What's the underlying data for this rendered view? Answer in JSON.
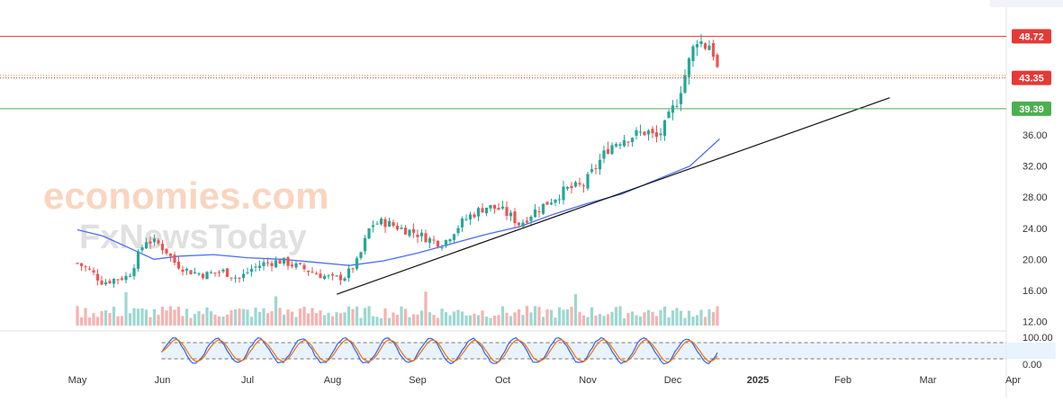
{
  "watermark": {
    "line1": "economies.com",
    "line2": "FxNewsToday"
  },
  "chart_data": {
    "type": "candlestick",
    "price_axis": {
      "ticks": [
        {
          "value": 12,
          "label": "12.00"
        },
        {
          "value": 16,
          "label": "16.00"
        },
        {
          "value": 20,
          "label": "20.00"
        },
        {
          "value": 24,
          "label": "24.00"
        },
        {
          "value": 28,
          "label": "28.00"
        },
        {
          "value": 32,
          "label": "32.00"
        },
        {
          "value": 36,
          "label": "36.00"
        }
      ],
      "range": [
        11,
        52
      ]
    },
    "time_axis": {
      "labels": [
        {
          "label": "May",
          "month": 0
        },
        {
          "label": "Jun",
          "month": 1
        },
        {
          "label": "Jul",
          "month": 2
        },
        {
          "label": "Aug",
          "month": 3
        },
        {
          "label": "Sep",
          "month": 4
        },
        {
          "label": "Oct",
          "month": 5
        },
        {
          "label": "Nov",
          "month": 6
        },
        {
          "label": "Dec",
          "month": 7
        },
        {
          "label": "2025",
          "month": 8,
          "bold": true
        },
        {
          "label": "Feb",
          "month": 9
        },
        {
          "label": "Mar",
          "month": 10
        },
        {
          "label": "Apr",
          "month": 11
        }
      ]
    },
    "horizontal_levels": [
      {
        "value": 48.72,
        "label": "48.72",
        "color": "#e53935",
        "style": "solid"
      },
      {
        "value": 43.35,
        "label": "43.35",
        "color": "#e53935",
        "style": "dotted"
      },
      {
        "value": 39.39,
        "label": "39.39",
        "color": "#4caf50",
        "style": "solid"
      }
    ],
    "price_path": [
      [
        0,
        19.5
      ],
      [
        0.15,
        18.5
      ],
      [
        0.3,
        17.0
      ],
      [
        0.45,
        17.5
      ],
      [
        0.6,
        17.8
      ],
      [
        0.8,
        22.5
      ],
      [
        0.95,
        22.0
      ],
      [
        1.05,
        21.0
      ],
      [
        1.15,
        19.5
      ],
      [
        1.3,
        18.5
      ],
      [
        1.5,
        18.0
      ],
      [
        1.7,
        18.5
      ],
      [
        1.9,
        17.5
      ],
      [
        2.05,
        18.8
      ],
      [
        2.2,
        19.5
      ],
      [
        2.4,
        19.8
      ],
      [
        2.6,
        19.0
      ],
      [
        2.85,
        18.0
      ],
      [
        3.0,
        17.5
      ],
      [
        3.15,
        17.8
      ],
      [
        3.3,
        19.8
      ],
      [
        3.45,
        24.5
      ],
      [
        3.6,
        24.8
      ],
      [
        3.8,
        24.0
      ],
      [
        3.95,
        23.5
      ],
      [
        4.15,
        22.5
      ],
      [
        4.3,
        22.0
      ],
      [
        4.45,
        24.0
      ],
      [
        4.6,
        25.5
      ],
      [
        4.8,
        26.8
      ],
      [
        4.95,
        26.5
      ],
      [
        5.1,
        25.5
      ],
      [
        5.2,
        24.5
      ],
      [
        5.35,
        26.0
      ],
      [
        5.55,
        27.5
      ],
      [
        5.75,
        29.0
      ],
      [
        5.95,
        29.5
      ],
      [
        6.1,
        32.0
      ],
      [
        6.25,
        34.5
      ],
      [
        6.4,
        35.5
      ],
      [
        6.55,
        36.0
      ],
      [
        6.7,
        36.5
      ],
      [
        6.8,
        35.5
      ],
      [
        6.9,
        37.0
      ],
      [
        7.05,
        40.5
      ],
      [
        7.15,
        44.0
      ],
      [
        7.22,
        46.5
      ],
      [
        7.28,
        48.5
      ],
      [
        7.38,
        47.5
      ],
      [
        7.45,
        47.8
      ],
      [
        7.5,
        45.5
      ],
      [
        7.55,
        43.35
      ]
    ],
    "moving_average": {
      "color": "#4a6cf7",
      "points": [
        [
          0,
          23.8
        ],
        [
          0.3,
          23.0
        ],
        [
          0.6,
          21.5
        ],
        [
          0.9,
          20.0
        ],
        [
          1.2,
          20.4
        ],
        [
          1.6,
          20.6
        ],
        [
          2.0,
          20.2
        ],
        [
          2.4,
          20.0
        ],
        [
          2.8,
          19.6
        ],
        [
          3.2,
          19.2
        ],
        [
          3.6,
          19.8
        ],
        [
          4.0,
          20.8
        ],
        [
          4.4,
          22.0
        ],
        [
          4.8,
          23.2
        ],
        [
          5.2,
          24.2
        ],
        [
          5.6,
          25.8
        ],
        [
          6.0,
          27.2
        ],
        [
          6.4,
          28.4
        ],
        [
          6.8,
          30.2
        ],
        [
          7.2,
          32.0
        ],
        [
          7.55,
          35.5
        ]
      ]
    },
    "trendline": {
      "color": "#111111",
      "from": {
        "month": 3.05,
        "value": 15.5
      },
      "to": {
        "month": 9.55,
        "value": 40.8
      }
    },
    "stochastic": {
      "axis_ticks": [
        {
          "value": 100,
          "label": "100.00"
        },
        {
          "value": 0,
          "label": "0.00"
        }
      ],
      "upper_band": 80,
      "lower_band": 20,
      "k_color": "#2962ff",
      "d_color": "#ff6d00"
    }
  }
}
